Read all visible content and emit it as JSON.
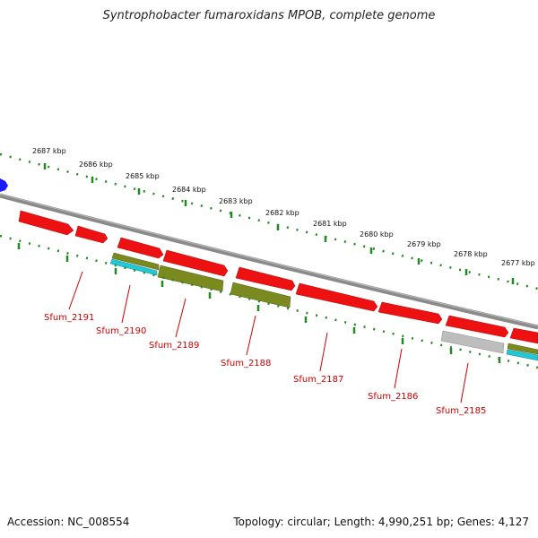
{
  "title": "Syntrophobacter fumaroxidans MPOB, complete genome",
  "footer": {
    "accession": "Accession: NC_008554",
    "stats": "Topology: circular; Length: 4,990,251 bp; Genes: 4,127"
  },
  "colors": {
    "backbone": "#8a8a8a",
    "tick": "#1f8a1f",
    "label": "#cc0000",
    "cds": "#ee1111",
    "olive": "#7a8a1e",
    "cyan": "#22c8d8",
    "gray_feature": "#bdbdbd",
    "marker": "#1a1aff"
  },
  "scale_labels": [
    "2687 kbp",
    "2686 kbp",
    "2685 kbp",
    "2684 kbp",
    "2683 kbp",
    "2682 kbp",
    "2681 kbp",
    "2680 kbp",
    "2679 kbp",
    "2678 kbp",
    "2677 kbp"
  ],
  "gene_labels": [
    "Sfum_2191",
    "Sfum_2190",
    "Sfum_2189",
    "Sfum_2188",
    "Sfum_2187",
    "Sfum_2186",
    "Sfum_2185"
  ]
}
